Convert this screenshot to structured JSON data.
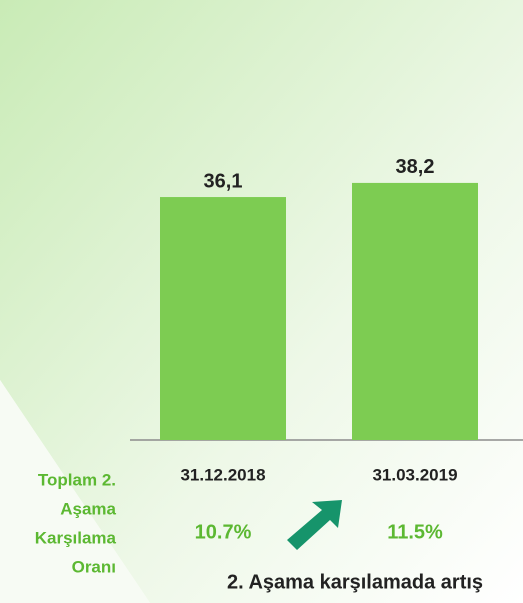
{
  "chart_data": {
    "type": "bar",
    "categories": [
      "31.12.2018",
      "31.03.2019"
    ],
    "values": [
      36.1,
      38.2
    ],
    "value_labels": [
      "36,1",
      "38,2"
    ],
    "color": "#7dcc52",
    "annotations": {
      "side_label": [
        "Toplam 2.",
        "Aşama",
        "Karşılama",
        "Oranı"
      ],
      "rates": [
        "10.7%",
        "11.5%"
      ],
      "footer": "2. Aşama karşılamada artış"
    }
  }
}
